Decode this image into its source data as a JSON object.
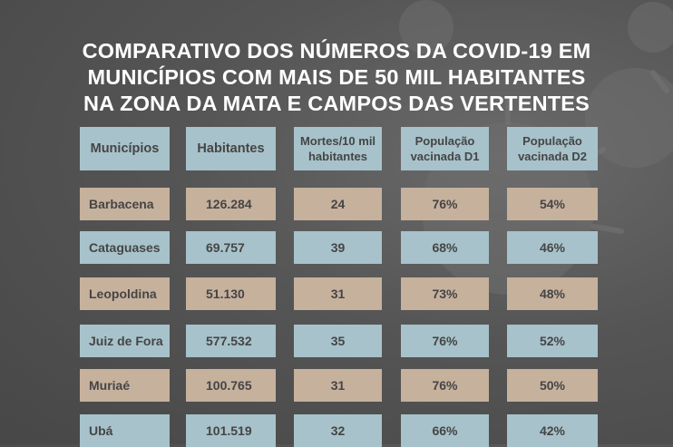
{
  "title_lines": [
    "COMPARATIVO DOS NÚMEROS DA COVID-19 EM",
    "MUNICÍPIOS COM MAIS DE 50 MIL HABITANTES",
    "NA ZONA DA MATA E CAMPOS DAS VERTENTES"
  ],
  "colors": {
    "blue_cell": "#a7c2ca",
    "tan_cell": "#c6b19d",
    "background": "#555555",
    "text": "#454545"
  },
  "table": {
    "headers": [
      [
        "Municípios"
      ],
      [
        "Habitantes"
      ],
      [
        "Mortes/10 mil",
        "habitantes"
      ],
      [
        "População",
        "vacinada D1"
      ],
      [
        "População",
        "vacinada D2"
      ]
    ],
    "rows": [
      [
        "Barbacena",
        "126.284",
        "24",
        "76%",
        "54%"
      ],
      [
        "Cataguases",
        "69.757",
        "39",
        "68%",
        "46%"
      ],
      [
        "Leopoldina",
        "51.130",
        "31",
        "73%",
        "48%"
      ],
      [
        "Juiz de Fora",
        "577.532",
        "35",
        "76%",
        "52%"
      ],
      [
        "Muriaé",
        "100.765",
        "31",
        "76%",
        "50%"
      ],
      [
        "Ubá",
        "101.519",
        "32",
        "66%",
        "42%"
      ]
    ]
  }
}
